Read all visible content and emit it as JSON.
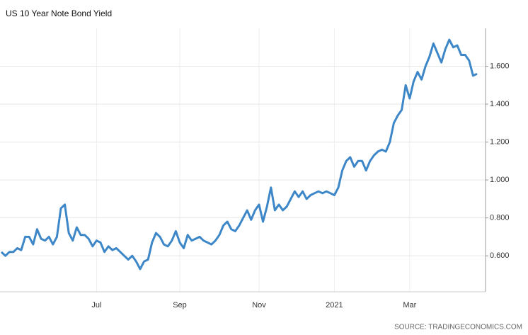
{
  "chart_data": {
    "type": "line",
    "title": "US 10 Year Note Bond Yield",
    "source": "SOURCE: TRADINGECONOMICS.COM",
    "categories": [
      null,
      null,
      null,
      null,
      null,
      null,
      null,
      null,
      null,
      null,
      null,
      null,
      null,
      null,
      null,
      null,
      null,
      null,
      null,
      null,
      null,
      null,
      null,
      null,
      "Jul",
      null,
      null,
      null,
      null,
      null,
      null,
      null,
      null,
      null,
      null,
      null,
      null,
      null,
      null,
      null,
      null,
      null,
      null,
      null,
      null,
      "Sep",
      null,
      null,
      null,
      null,
      null,
      null,
      null,
      null,
      null,
      null,
      null,
      null,
      null,
      null,
      null,
      null,
      null,
      null,
      null,
      "Nov",
      null,
      null,
      null,
      null,
      null,
      null,
      null,
      null,
      null,
      null,
      null,
      null,
      null,
      null,
      null,
      null,
      null,
      null,
      "2021",
      null,
      null,
      null,
      null,
      null,
      null,
      null,
      null,
      null,
      null,
      null,
      null,
      null,
      null,
      null,
      null,
      null,
      null,
      "Mar",
      null,
      null,
      null,
      null,
      null,
      null,
      null,
      null,
      null,
      null,
      null,
      null,
      null,
      null,
      null,
      null,
      null
    ],
    "values": [
      0.62,
      0.6,
      0.62,
      0.62,
      0.64,
      0.63,
      0.7,
      0.7,
      0.66,
      0.74,
      0.69,
      0.68,
      0.7,
      0.66,
      0.7,
      0.85,
      0.87,
      0.72,
      0.68,
      0.75,
      0.71,
      0.71,
      0.69,
      0.65,
      0.68,
      0.67,
      0.62,
      0.65,
      0.63,
      0.64,
      0.62,
      0.6,
      0.58,
      0.6,
      0.57,
      0.53,
      0.57,
      0.58,
      0.67,
      0.72,
      0.7,
      0.66,
      0.65,
      0.68,
      0.73,
      0.67,
      0.64,
      0.71,
      0.68,
      0.69,
      0.7,
      0.68,
      0.67,
      0.66,
      0.68,
      0.71,
      0.76,
      0.78,
      0.74,
      0.73,
      0.76,
      0.8,
      0.84,
      0.79,
      0.84,
      0.87,
      0.78,
      0.86,
      0.96,
      0.84,
      0.87,
      0.84,
      0.86,
      0.9,
      0.94,
      0.91,
      0.94,
      0.9,
      0.92,
      0.93,
      0.94,
      0.93,
      0.94,
      0.93,
      0.92,
      0.96,
      1.05,
      1.1,
      1.12,
      1.07,
      1.1,
      1.1,
      1.05,
      1.1,
      1.13,
      1.15,
      1.16,
      1.15,
      1.2,
      1.3,
      1.34,
      1.37,
      1.5,
      1.43,
      1.52,
      1.57,
      1.53,
      1.6,
      1.65,
      1.72,
      1.67,
      1.62,
      1.69,
      1.74,
      1.7,
      1.71,
      1.66,
      1.66,
      1.63,
      1.55,
      1.56
    ],
    "color": "#3d87c8",
    "ylim": [
      0.41,
      1.8
    ],
    "yticks": [
      {
        "value": 0.6,
        "label": "0.600"
      },
      {
        "value": 0.8,
        "label": "0.800"
      },
      {
        "value": 1.0,
        "label": "1.000"
      },
      {
        "value": 1.2,
        "label": "1.200"
      },
      {
        "value": 1.4,
        "label": "1.400"
      },
      {
        "value": 1.6,
        "label": "1.600"
      }
    ],
    "grid": true
  }
}
